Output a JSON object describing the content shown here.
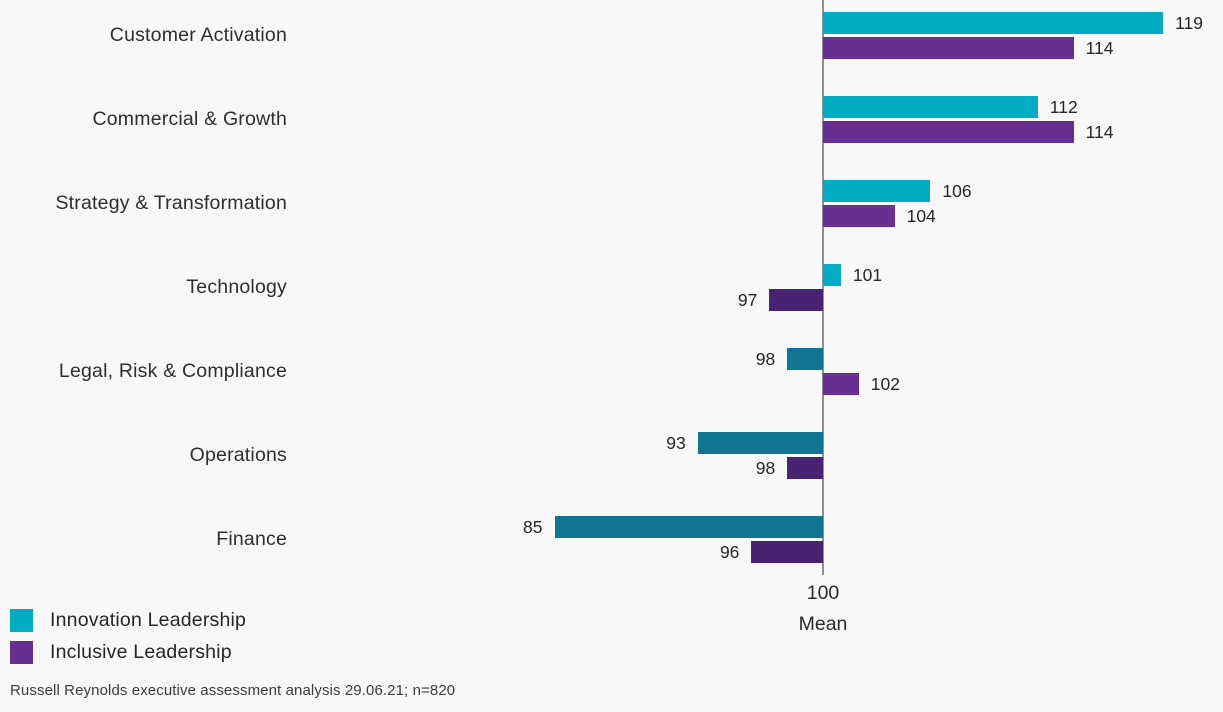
{
  "chart_data": {
    "type": "bar",
    "orientation": "horizontal",
    "title": "",
    "categories": [
      "Customer Activation",
      "Commercial & Growth",
      "Strategy & Transformation",
      "Technology",
      "Legal, Risk & Compliance",
      "Operations",
      "Finance"
    ],
    "series": [
      {
        "name": "Innovation Leadership",
        "values": [
          119,
          112,
          106,
          101,
          98,
          93,
          85
        ],
        "color_above_mean": "#00abc4",
        "color_below_mean": "#0e7690"
      },
      {
        "name": "Inclusive Leadership",
        "values": [
          114,
          114,
          104,
          97,
          102,
          98,
          96
        ],
        "color_above_mean": "#682e92",
        "color_below_mean": "#472372"
      }
    ],
    "baseline": {
      "value": 100,
      "tick_label": "100",
      "axis_label": "Mean"
    },
    "xlim": [
      80,
      122
    ],
    "grid": false,
    "value_labels": "outside-end",
    "legend_position": "bottom-left"
  },
  "legend": {
    "items": [
      {
        "label": "Innovation Leadership",
        "color": "#00abc4"
      },
      {
        "label": "Inclusive Leadership",
        "color": "#682e92"
      }
    ]
  },
  "footer": {
    "source_note": "Russell Reynolds executive assessment analysis 29.06.21; n=820"
  }
}
